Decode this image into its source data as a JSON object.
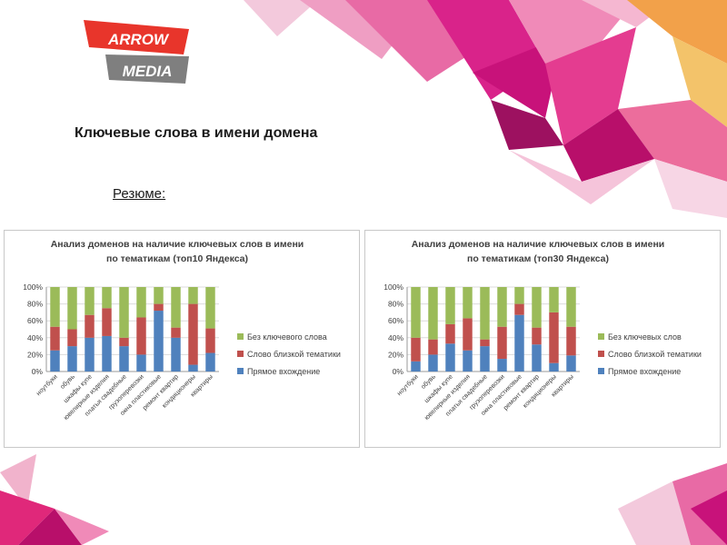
{
  "logo": {
    "line1": "ARROW",
    "line2": "MEDIA"
  },
  "heading": "Ключевые слова в имени домена",
  "summary_label": "Резюме:",
  "colors": {
    "direct": "#4f81bd",
    "related": "#c0504d",
    "none": "#9bbb59",
    "accent_pink": "#e0287a",
    "logo_red": "#e8352b",
    "logo_gray": "#7f7f7f"
  },
  "chart_data": [
    {
      "type": "bar",
      "stacked": true,
      "title": [
        "Анализ доменов на наличие ключевых слов в имени",
        "по тематикам (топ10 Яндекса)"
      ],
      "categories": [
        "ноутбуки",
        "обувь",
        "шкафы купе",
        "ювелирные изделия",
        "платья свадебные",
        "грузоперевозки",
        "окна пластиковые",
        "ремонт квартир",
        "кондиционеры",
        "квартиры"
      ],
      "ylim": [
        0,
        100
      ],
      "yticks": [
        "0%",
        "20%",
        "40%",
        "60%",
        "80%",
        "100%"
      ],
      "legend_position": "right",
      "series": [
        {
          "name": "Прямое вхождение",
          "color": "#4f81bd",
          "values": [
            25,
            30,
            40,
            42,
            30,
            20,
            72,
            40,
            8,
            22
          ]
        },
        {
          "name": "Слово близкой тематики",
          "color": "#c0504d",
          "values": [
            28,
            20,
            27,
            33,
            10,
            44,
            8,
            12,
            72,
            29
          ]
        },
        {
          "name": "Без ключевого слова",
          "color": "#9bbb59",
          "values": [
            47,
            50,
            33,
            25,
            60,
            36,
            20,
            48,
            20,
            49
          ]
        }
      ]
    },
    {
      "type": "bar",
      "stacked": true,
      "title": [
        "Анализ доменов на наличие ключевых слов в имени",
        "по тематикам (топ30 Яндекса)"
      ],
      "categories": [
        "ноутбуки",
        "обувь",
        "шкафы купе",
        "ювелирные изделия",
        "платья свадебные",
        "грузоперевозки",
        "окна пластиковые",
        "ремонт квартир",
        "кондиционеры",
        "квартиры"
      ],
      "ylim": [
        0,
        100
      ],
      "yticks": [
        "0%",
        "20%",
        "40%",
        "60%",
        "80%",
        "100%"
      ],
      "legend_position": "right",
      "series": [
        {
          "name": "Прямое вхождение",
          "color": "#4f81bd",
          "values": [
            12,
            20,
            33,
            25,
            30,
            15,
            67,
            32,
            10,
            19
          ]
        },
        {
          "name": "Слово близкой тематики",
          "color": "#c0504d",
          "values": [
            28,
            18,
            23,
            38,
            8,
            38,
            13,
            20,
            60,
            34
          ]
        },
        {
          "name": "Без ключевых слов",
          "color": "#9bbb59",
          "values": [
            60,
            62,
            44,
            37,
            62,
            47,
            20,
            48,
            30,
            47
          ]
        }
      ]
    }
  ]
}
